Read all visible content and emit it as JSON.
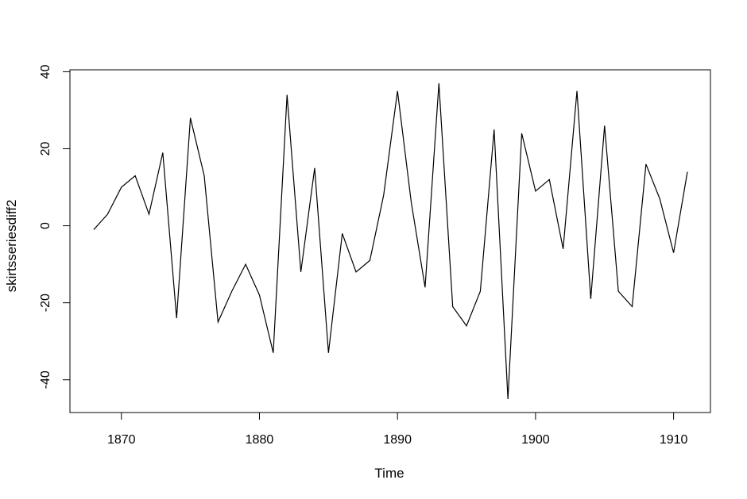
{
  "chart_data": {
    "type": "line",
    "title": "",
    "xlabel": "Time",
    "ylabel": "skirtsseriesdiff2",
    "xlim": [
      1868,
      1911
    ],
    "ylim": [
      -45,
      37
    ],
    "grid": false,
    "x_ticks": [
      1870,
      1880,
      1890,
      1900,
      1910
    ],
    "y_ticks": [
      -40,
      -20,
      0,
      20,
      40
    ],
    "series": [
      {
        "x": [
          1868,
          1869,
          1870,
          1871,
          1872,
          1873,
          1874,
          1875,
          1876,
          1877,
          1878,
          1879,
          1880,
          1881,
          1882,
          1883,
          1884,
          1885,
          1886,
          1887,
          1888,
          1889,
          1890,
          1891,
          1892,
          1893,
          1894,
          1895,
          1896,
          1897,
          1898,
          1899,
          1900,
          1901,
          1902,
          1903,
          1904,
          1905,
          1906,
          1907,
          1908,
          1909,
          1910,
          1911
        ],
        "values": [
          -1,
          3,
          10,
          13,
          3,
          19,
          -24,
          28,
          13,
          -25,
          -17,
          -10,
          -18,
          -33,
          34,
          -12,
          15,
          -33,
          -2,
          -12,
          -9,
          8,
          35,
          6,
          -16,
          37,
          -21,
          -26,
          -17,
          25,
          -45,
          24,
          9,
          12,
          -6,
          35,
          -19,
          26,
          -17,
          -21,
          16,
          7,
          -7,
          14
        ]
      }
    ],
    "colors": {
      "line": "#000000",
      "axis": "#000000",
      "background": "#ffffff"
    }
  }
}
